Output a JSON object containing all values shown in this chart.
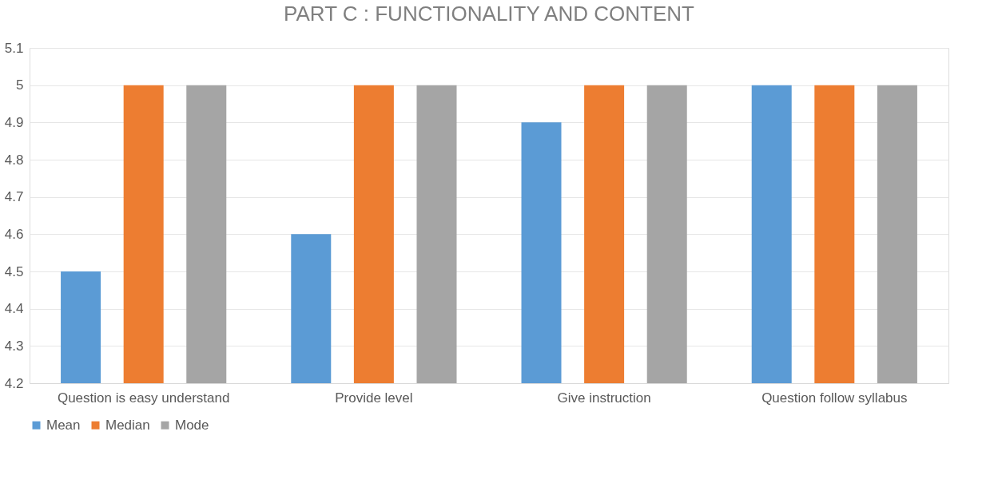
{
  "chart_data": {
    "type": "bar",
    "title": "PART C : FUNCTIONALITY AND CONTENT",
    "categories": [
      "Question is easy understand",
      "Provide level",
      "Give instruction",
      "Question follow syllabus"
    ],
    "series": [
      {
        "name": "Mean",
        "color": "#5b9bd5",
        "values": [
          4.5,
          4.6,
          4.9,
          5.0
        ]
      },
      {
        "name": "Median",
        "color": "#ed7d31",
        "values": [
          5,
          5,
          5,
          5
        ]
      },
      {
        "name": "Mode",
        "color": "#a5a5a5",
        "values": [
          5,
          5,
          5,
          5
        ]
      }
    ],
    "ylim": [
      4.2,
      5.1
    ],
    "yticks": [
      4.2,
      4.3,
      4.4,
      4.5,
      4.6,
      4.7,
      4.8,
      4.9,
      5,
      5.1
    ],
    "grid": "y",
    "legend": "bottom"
  }
}
